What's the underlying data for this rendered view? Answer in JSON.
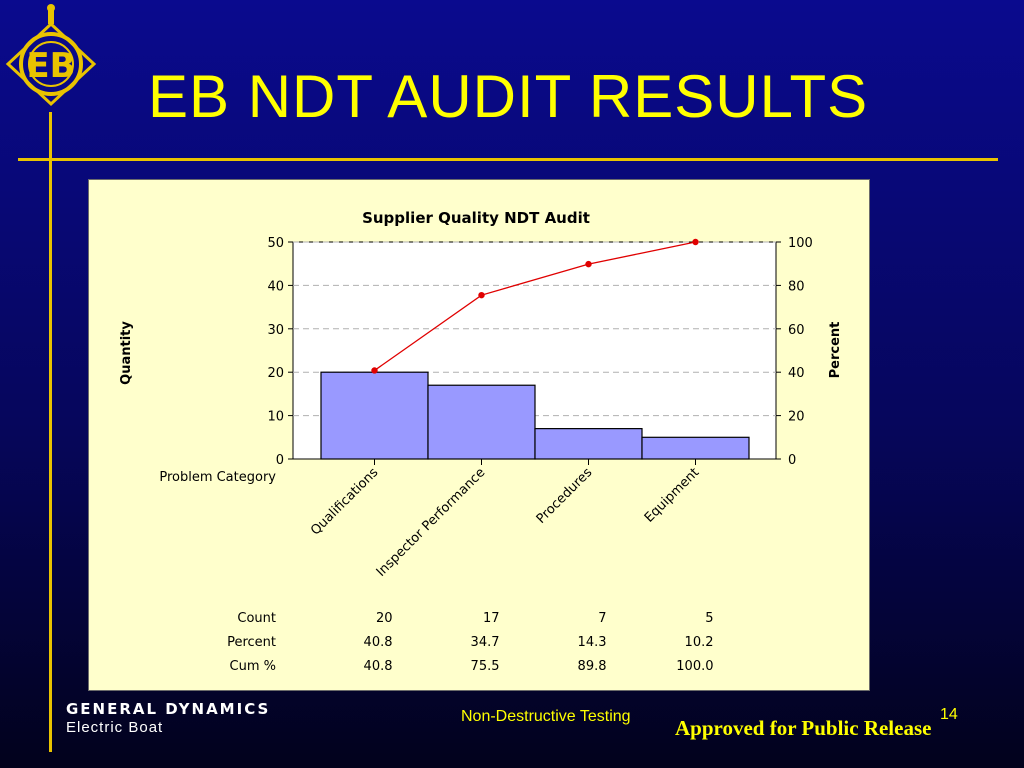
{
  "slide": {
    "title": "EB NDT AUDIT RESULTS",
    "logo_text": "EB",
    "footer_center": "Non-Destructive Testing",
    "page_number": "14",
    "release_note": "Approved for Public Release",
    "company_name": "GENERAL DYNAMICS",
    "company_division": "Electric Boat"
  },
  "colors": {
    "background": "#0a0a8e",
    "accent_yellow": "#ffff00",
    "rule_gold": "#e9c300",
    "panel_bg": "#ffffcc",
    "bar_fill": "#9999ff",
    "line_red": "#e00000"
  },
  "chart_data": {
    "type": "bar",
    "subtype": "pareto",
    "title": "Supplier Quality NDT Audit",
    "ylabel": "Quantity",
    "y2label": "Percent",
    "xlabel": "Problem Category",
    "categories": [
      "Qualifications",
      "Inspector Performance",
      "Procedures",
      "Equipment"
    ],
    "ylim": [
      0,
      50
    ],
    "y2lim": [
      0,
      100
    ],
    "yticks": [
      "0",
      "10",
      "20",
      "30",
      "40",
      "50"
    ],
    "y2ticks": [
      "0",
      "20",
      "40",
      "60",
      "80",
      "100"
    ],
    "grid": true,
    "series": [
      {
        "name": "Count",
        "type": "bar",
        "values": [
          20,
          17,
          7,
          5
        ]
      },
      {
        "name": "Cum %",
        "type": "line",
        "axis": "right",
        "values": [
          40.8,
          75.5,
          89.8,
          100.0
        ]
      }
    ],
    "table": {
      "rows": [
        {
          "label": "Count",
          "values": [
            "20",
            "17",
            "7",
            "5"
          ]
        },
        {
          "label": "Percent",
          "values": [
            "40.8",
            "34.7",
            "14.3",
            "10.2"
          ]
        },
        {
          "label": "Cum %",
          "values": [
            "40.8",
            "75.5",
            "89.8",
            "100.0"
          ]
        }
      ]
    }
  }
}
